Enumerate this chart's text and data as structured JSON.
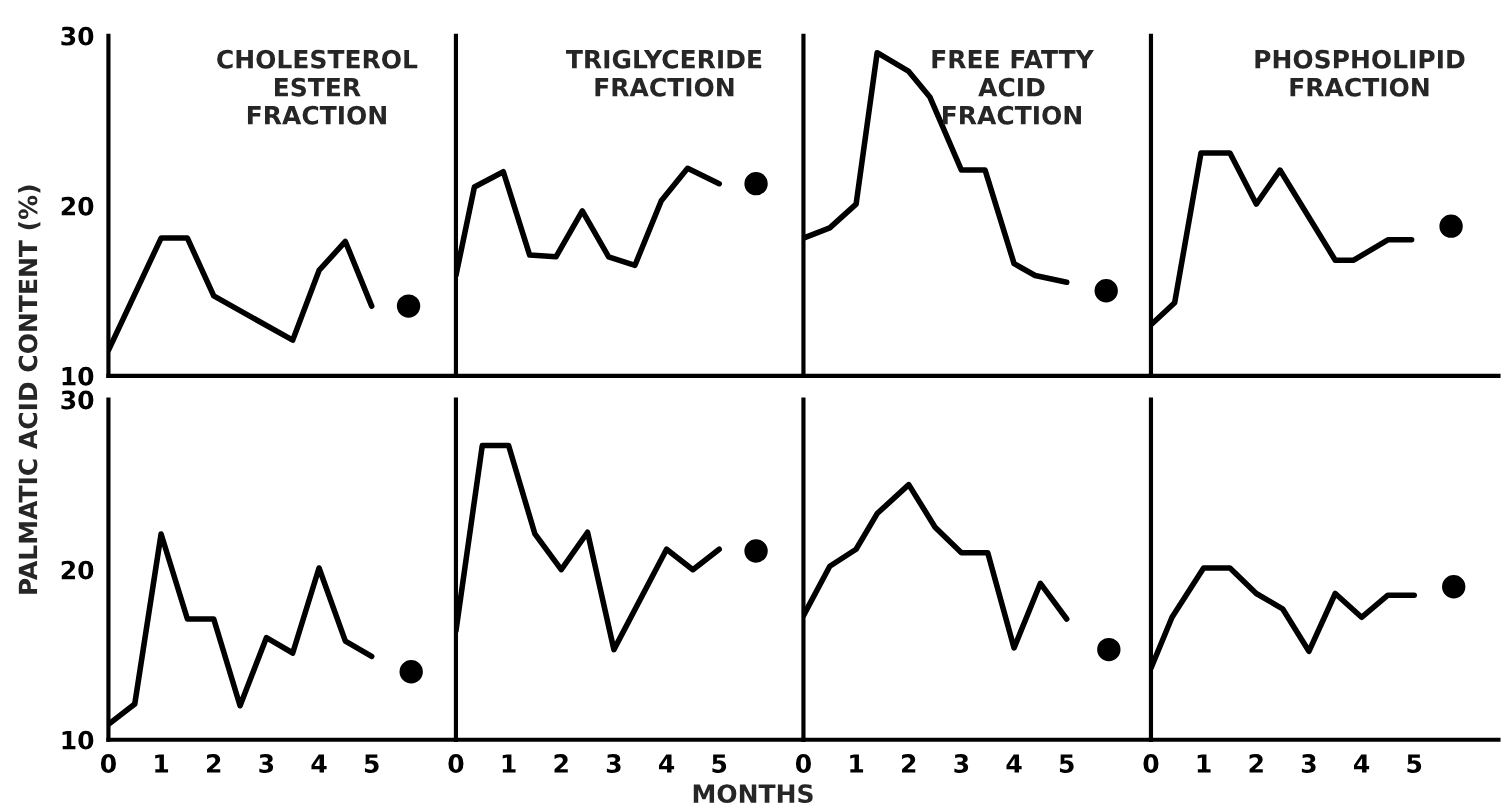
{
  "chart_data": [
    {
      "type": "line",
      "title": "CHOLESTEROL\nESTER\nFRACTION",
      "ylabel": "PALMATIC ACID CONTENT (%)",
      "xlim": [
        0,
        6.6
      ],
      "ylim": [
        10,
        30
      ],
      "xticks": [
        0,
        1,
        2,
        3,
        4,
        5
      ],
      "yticks": [
        10,
        20,
        30
      ],
      "tick_labels": "y",
      "grid": false,
      "legend": false,
      "series": [
        {
          "color": "#000000",
          "x": [
            0,
            1,
            1.5,
            2,
            3.5,
            4,
            4.5,
            5
          ],
          "values": [
            11.5,
            18.1,
            18.1,
            14.7,
            12.1,
            16.2,
            17.9,
            14.1
          ]
        },
        {
          "type": "scatter",
          "marker": "circle",
          "color": "#000000",
          "x": [
            5.7
          ],
          "values": [
            14.1
          ]
        }
      ]
    },
    {
      "type": "line",
      "title": "TRIGLYCERIDE\nFRACTION",
      "xlim": [
        0,
        6.6
      ],
      "ylim": [
        10,
        30
      ],
      "xticks": [
        0,
        1,
        2,
        3,
        4,
        5
      ],
      "yticks": [
        10,
        20,
        30
      ],
      "tick_labels": false,
      "grid": false,
      "legend": false,
      "series": [
        {
          "color": "#000000",
          "x": [
            0,
            0.35,
            0.9,
            1.4,
            1.9,
            2.4,
            2.9,
            3.4,
            3.9,
            4.4,
            5
          ],
          "values": [
            15.9,
            21.1,
            22.0,
            17.1,
            17.0,
            19.7,
            17.0,
            16.5,
            20.3,
            22.2,
            21.3
          ]
        },
        {
          "type": "scatter",
          "marker": "circle",
          "color": "#000000",
          "x": [
            5.7
          ],
          "values": [
            21.3
          ]
        }
      ]
    },
    {
      "type": "line",
      "title": "FREE FATTY\nACID\nFRACTION",
      "xlim": [
        0,
        6.6
      ],
      "ylim": [
        10,
        30
      ],
      "xticks": [
        0,
        1,
        2,
        3,
        4,
        5
      ],
      "yticks": [
        10,
        20,
        30
      ],
      "tick_labels": false,
      "grid": false,
      "legend": false,
      "series": [
        {
          "color": "#000000",
          "x": [
            0,
            0.5,
            1,
            1.4,
            2,
            2.4,
            3,
            3.45,
            4,
            4.4,
            5
          ],
          "values": [
            18.1,
            18.7,
            20.1,
            29.0,
            27.9,
            26.4,
            22.1,
            22.1,
            16.6,
            15.9,
            15.5
          ]
        },
        {
          "type": "scatter",
          "marker": "circle",
          "color": "#000000",
          "x": [
            5.75
          ],
          "values": [
            15.0
          ]
        }
      ]
    },
    {
      "type": "line",
      "title": "PHOSPHOLIPID\nFRACTION",
      "xlim": [
        0,
        6.6
      ],
      "ylim": [
        10,
        30
      ],
      "xticks": [
        0,
        1,
        2,
        3,
        4,
        5
      ],
      "yticks": [
        10,
        20,
        30
      ],
      "tick_labels": false,
      "grid": false,
      "legend": false,
      "series": [
        {
          "color": "#000000",
          "x": [
            0,
            0.45,
            0.95,
            1.5,
            2,
            2.45,
            3.5,
            3.85,
            4.5,
            4.95
          ],
          "values": [
            13.0,
            14.3,
            23.1,
            23.1,
            20.1,
            22.1,
            16.8,
            16.8,
            18.0,
            18.0
          ]
        },
        {
          "type": "scatter",
          "marker": "circle",
          "color": "#000000",
          "x": [
            5.7
          ],
          "values": [
            18.8
          ]
        }
      ]
    },
    {
      "type": "line",
      "xlim": [
        0,
        6.6
      ],
      "ylim": [
        10,
        30
      ],
      "xticks": [
        0,
        1,
        2,
        3,
        4,
        5
      ],
      "yticks": [
        10,
        20,
        30
      ],
      "grid": false,
      "legend": false,
      "series": [
        {
          "color": "#000000",
          "x": [
            0,
            0.5,
            1,
            1.5,
            2,
            2.5,
            3,
            3.5,
            4,
            4.5,
            5
          ],
          "values": [
            10.9,
            12.1,
            22.1,
            17.1,
            17.1,
            12.0,
            16.0,
            15.1,
            20.1,
            15.8,
            14.9
          ]
        },
        {
          "type": "scatter",
          "marker": "circle",
          "color": "#000000",
          "x": [
            5.75
          ],
          "values": [
            14.0
          ]
        }
      ]
    },
    {
      "type": "line",
      "xlabel": "MONTHS",
      "xlim": [
        0,
        6.6
      ],
      "ylim": [
        10,
        30
      ],
      "xticks": [
        0,
        1,
        2,
        3,
        4,
        5
      ],
      "yticks": [
        10,
        20,
        30
      ],
      "tick_labels": "x",
      "grid": false,
      "legend": false,
      "series": [
        {
          "color": "#000000",
          "x": [
            0,
            0.5,
            1,
            1.5,
            2,
            2.5,
            3,
            4,
            4.5,
            5
          ],
          "values": [
            16.4,
            27.3,
            27.3,
            22.1,
            20.0,
            22.2,
            15.3,
            21.2,
            20.0,
            21.2
          ]
        },
        {
          "type": "scatter",
          "marker": "circle",
          "color": "#000000",
          "x": [
            5.7
          ],
          "values": [
            21.1
          ]
        }
      ]
    },
    {
      "type": "line",
      "xlim": [
        0,
        6.6
      ],
      "ylim": [
        10,
        30
      ],
      "xticks": [
        0,
        1,
        2,
        3,
        4,
        5
      ],
      "yticks": [
        10,
        20,
        30
      ],
      "tick_labels": "x",
      "grid": false,
      "legend": false,
      "series": [
        {
          "color": "#000000",
          "x": [
            0,
            0.5,
            1,
            1.4,
            2,
            2.5,
            3,
            3.5,
            4,
            4.5,
            5
          ],
          "values": [
            17.3,
            20.2,
            21.2,
            23.3,
            25.0,
            22.5,
            21.0,
            21.0,
            15.4,
            19.2,
            17.1
          ]
        },
        {
          "type": "scatter",
          "marker": "circle",
          "color": "#000000",
          "x": [
            5.8
          ],
          "values": [
            15.3
          ]
        }
      ]
    },
    {
      "type": "line",
      "xlim": [
        0,
        6.6
      ],
      "ylim": [
        10,
        30
      ],
      "xticks": [
        0,
        1,
        2,
        3,
        4,
        5
      ],
      "yticks": [
        10,
        20,
        30
      ],
      "tick_labels": "x",
      "grid": false,
      "legend": false,
      "series": [
        {
          "color": "#000000",
          "x": [
            0,
            0.4,
            1,
            1.5,
            2,
            2.5,
            3,
            3.5,
            4,
            4.5,
            5
          ],
          "values": [
            14.2,
            17.2,
            20.1,
            20.1,
            18.6,
            17.7,
            15.2,
            18.6,
            17.2,
            18.5,
            18.5
          ]
        },
        {
          "type": "scatter",
          "marker": "circle",
          "color": "#000000",
          "x": [
            5.75
          ],
          "values": [
            19.0
          ]
        }
      ]
    }
  ]
}
